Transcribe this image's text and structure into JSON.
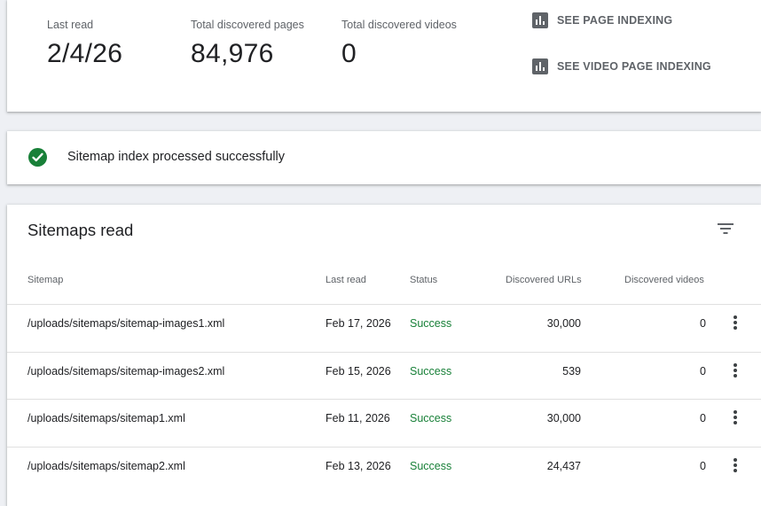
{
  "summary": {
    "last_read_label": "Last read",
    "last_read_value": "2/4/26",
    "pages_label": "Total discovered pages",
    "pages_value": "84,976",
    "videos_label": "Total discovered videos",
    "videos_value": "0",
    "page_indexing_link": "SEE PAGE INDEXING",
    "video_indexing_link": "SEE VIDEO PAGE INDEXING"
  },
  "status": {
    "message": "Sitemap index processed successfully",
    "color": "#188038"
  },
  "sitemaps": {
    "title": "Sitemaps read",
    "columns": {
      "sitemap": "Sitemap",
      "last_read": "Last read",
      "status": "Status",
      "urls": "Discovered URLs",
      "videos": "Discovered videos"
    },
    "rows": [
      {
        "sitemap": "/uploads/sitemaps/sitemap-images1.xml",
        "last_read": "Feb 17, 2026",
        "status": "Success",
        "urls": "30,000",
        "videos": "0"
      },
      {
        "sitemap": "/uploads/sitemaps/sitemap-images2.xml",
        "last_read": "Feb 15, 2026",
        "status": "Success",
        "urls": "539",
        "videos": "0"
      },
      {
        "sitemap": "/uploads/sitemaps/sitemap1.xml",
        "last_read": "Feb 11, 2026",
        "status": "Success",
        "urls": "30,000",
        "videos": "0"
      },
      {
        "sitemap": "/uploads/sitemaps/sitemap2.xml",
        "last_read": "Feb 13, 2026",
        "status": "Success",
        "urls": "24,437",
        "videos": "0"
      }
    ]
  },
  "colors": {
    "accent_success": "#188038",
    "muted_text": "#5f6368",
    "background": "#eef0f4"
  },
  "icons": [
    "bar-chart-icon",
    "check-circle-icon",
    "filter-icon",
    "more-vert-icon"
  ]
}
